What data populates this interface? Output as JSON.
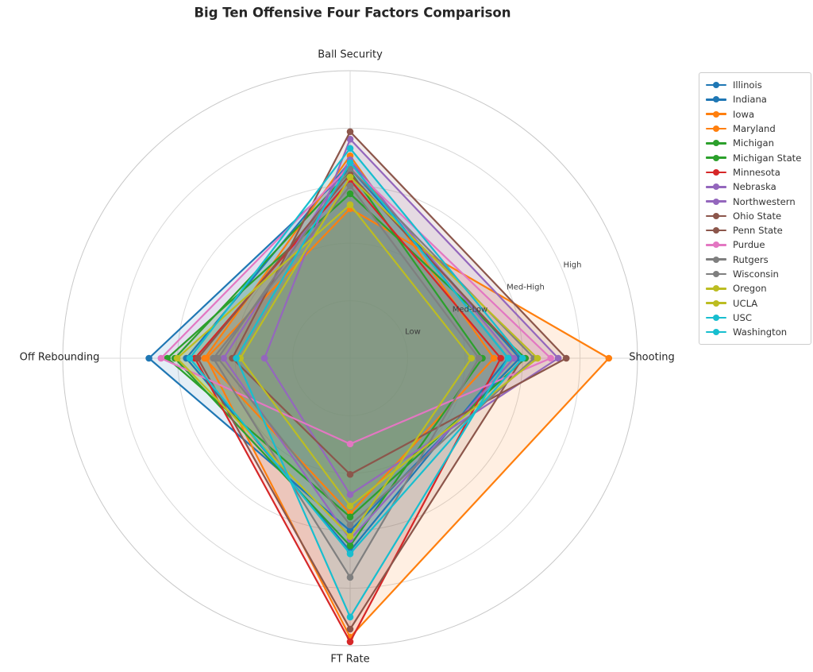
{
  "title": "Big Ten Offensive Four Factors Comparison",
  "chart_data": {
    "type": "radar",
    "axes": [
      "Shooting",
      "Ball Security",
      "Off Rebounding",
      "FT Rate"
    ],
    "axis_angles_deg": [
      0,
      90,
      180,
      270
    ],
    "scale": {
      "min": 0,
      "max": 5,
      "rings": [
        1,
        2,
        3,
        4
      ],
      "ring_labels": [
        "Low",
        "Med-Low",
        "Med-High",
        "High"
      ],
      "ring_label_angle_deg": 22.5
    },
    "grid": true,
    "legend_position": "right-outside",
    "series": [
      {
        "name": "Illinois",
        "color": "#1f77b4",
        "values": [
          2.95,
          3.3,
          3.5,
          3.0
        ]
      },
      {
        "name": "Indiana",
        "color": "#1f77b4",
        "values": [
          2.75,
          3.42,
          2.85,
          3.35
        ]
      },
      {
        "name": "Iowa",
        "color": "#ff7f0e",
        "values": [
          2.5,
          3.52,
          2.53,
          2.7
        ]
      },
      {
        "name": "Maryland",
        "color": "#ff7f0e",
        "values": [
          4.5,
          2.6,
          2.5,
          4.85
        ]
      },
      {
        "name": "Michigan",
        "color": "#2ca02c",
        "values": [
          3.05,
          2.86,
          3.18,
          2.76
        ]
      },
      {
        "name": "Michigan State",
        "color": "#2ca02c",
        "values": [
          2.3,
          3.25,
          3.05,
          3.26
        ]
      },
      {
        "name": "Minnesota",
        "color": "#d62728",
        "values": [
          2.62,
          3.1,
          2.7,
          4.93
        ]
      },
      {
        "name": "Nebraska",
        "color": "#9467bd",
        "values": [
          2.85,
          3.45,
          2.2,
          3.15
        ]
      },
      {
        "name": "Northwestern",
        "color": "#9467bd",
        "values": [
          3.62,
          3.81,
          1.49,
          2.37
        ]
      },
      {
        "name": "Ohio State",
        "color": "#8c564b",
        "values": [
          3.76,
          3.94,
          2.05,
          2.02
        ]
      },
      {
        "name": "Penn State",
        "color": "#8c564b",
        "values": [
          3.0,
          3.2,
          2.65,
          4.71
        ]
      },
      {
        "name": "Purdue",
        "color": "#e377c2",
        "values": [
          3.49,
          3.35,
          3.29,
          1.49
        ]
      },
      {
        "name": "Rutgers",
        "color": "#7f7f7f",
        "values": [
          2.24,
          3.0,
          2.38,
          3.81
        ]
      },
      {
        "name": "Wisconsin",
        "color": "#7f7f7f",
        "values": [
          3.2,
          3.3,
          2.3,
          2.9
        ]
      },
      {
        "name": "Oregon",
        "color": "#bcbd22",
        "values": [
          3.26,
          3.15,
          1.91,
          2.57
        ]
      },
      {
        "name": "UCLA",
        "color": "#bcbd22",
        "values": [
          2.11,
          2.67,
          3.01,
          3.1
        ]
      },
      {
        "name": "USC",
        "color": "#17becf",
        "values": [
          3.0,
          3.65,
          2.79,
          3.4
        ]
      },
      {
        "name": "Washington",
        "color": "#17becf",
        "values": [
          2.75,
          3.4,
          1.98,
          4.5
        ]
      }
    ],
    "style": {
      "grid_color": "#d9d9d9",
      "outer_ring_color": "#c8c8c8",
      "fill_opacity": 0.12,
      "line_width": 2.2,
      "marker_radius": 4.3
    }
  }
}
